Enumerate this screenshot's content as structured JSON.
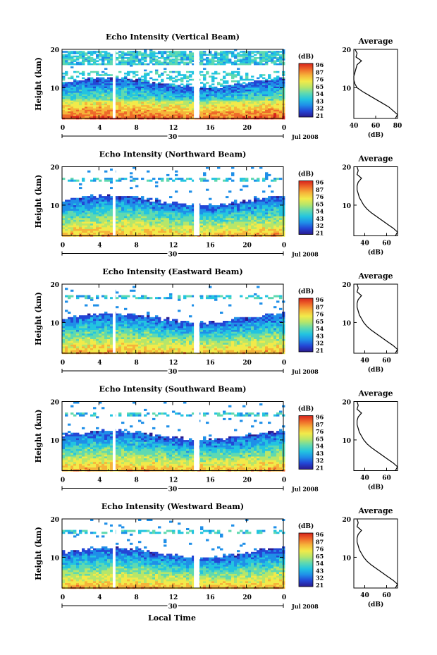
{
  "figure": {
    "date_label": "Jul 2008",
    "day_label": "30",
    "xlabel": "Local Time",
    "ylabel": "Height (km)",
    "avg_title": "Average",
    "avg_xlabel": "(dB)",
    "cbar_label": "(dB)"
  },
  "colors": {
    "colormap": [
      "#2a1a8e",
      "#2346d6",
      "#1f8fe8",
      "#23c4e0",
      "#5fd9b0",
      "#b6e66a",
      "#f2ea4a",
      "#f6b43a",
      "#ef6a2a",
      "#d8241c"
    ],
    "axis": "#000000",
    "gap": "#ffffff"
  },
  "chart_data": [
    {
      "type": "heatmap",
      "title": "Echo Intensity (Vertical Beam)",
      "xlim": [
        0,
        24
      ],
      "ylim": [
        2,
        20
      ],
      "xticks": [
        "0",
        "4",
        "8",
        "12",
        "16",
        "20",
        "0"
      ],
      "yticks": [
        "10",
        "20"
      ],
      "colorbar": {
        "range": [
          21,
          96
        ],
        "ticks": [
          "96",
          "87",
          "76",
          "65",
          "54",
          "43",
          "32",
          "21"
        ]
      },
      "data_gaps_hours": [
        [
          5.5,
          5.8
        ],
        [
          14.3,
          14.9
        ]
      ],
      "avg_profile": {
        "xlim": [
          40,
          80
        ],
        "xticks": [
          "40",
          "60",
          "80"
        ],
        "height": [
          2,
          3,
          4,
          5,
          6,
          7,
          8,
          9,
          10,
          11,
          12,
          13,
          14,
          15,
          16,
          17,
          18,
          19,
          20
        ],
        "value": [
          78,
          80,
          76,
          72,
          66,
          60,
          54,
          48,
          43,
          41,
          40,
          40,
          41,
          42,
          43,
          47,
          42,
          43,
          41
        ]
      }
    },
    {
      "type": "heatmap",
      "title": "Echo Intensity (Northward Beam)",
      "xlim": [
        0,
        24
      ],
      "ylim": [
        2,
        20
      ],
      "xticks": [
        "0",
        "4",
        "8",
        "12",
        "16",
        "20",
        "0"
      ],
      "yticks": [
        "10",
        "20"
      ],
      "colorbar": {
        "range": [
          21,
          96
        ],
        "ticks": [
          "96",
          "87",
          "76",
          "65",
          "54",
          "43",
          "32",
          "21"
        ]
      },
      "data_gaps_hours": [
        [
          5.5,
          5.8
        ],
        [
          14.3,
          14.9
        ]
      ],
      "avg_profile": {
        "xlim": [
          30,
          70
        ],
        "xticks": [
          "40",
          "60"
        ],
        "height": [
          2,
          3,
          4,
          5,
          6,
          7,
          8,
          9,
          10,
          11,
          12,
          13,
          14,
          15,
          16,
          17,
          18,
          19,
          20
        ],
        "value": [
          68,
          70,
          66,
          61,
          56,
          51,
          46,
          42,
          39,
          37,
          35,
          34,
          33,
          33,
          34,
          37,
          33,
          34,
          33
        ]
      }
    },
    {
      "type": "heatmap",
      "title": "Echo Intensity (Eastward Beam)",
      "xlim": [
        0,
        24
      ],
      "ylim": [
        2,
        20
      ],
      "xticks": [
        "0",
        "4",
        "8",
        "12",
        "16",
        "20",
        "0"
      ],
      "yticks": [
        "10",
        "20"
      ],
      "colorbar": {
        "range": [
          21,
          96
        ],
        "ticks": [
          "96",
          "87",
          "76",
          "65",
          "54",
          "43",
          "32",
          "21"
        ]
      },
      "data_gaps_hours": [
        [
          5.5,
          5.8
        ],
        [
          14.3,
          14.9
        ]
      ],
      "avg_profile": {
        "xlim": [
          30,
          70
        ],
        "xticks": [
          "40",
          "60"
        ],
        "height": [
          2,
          3,
          4,
          5,
          6,
          7,
          8,
          9,
          10,
          11,
          12,
          13,
          14,
          15,
          16,
          17,
          18,
          19,
          20
        ],
        "value": [
          68,
          70,
          66,
          61,
          56,
          51,
          46,
          42,
          39,
          37,
          35,
          34,
          33,
          33,
          34,
          37,
          33,
          34,
          33
        ]
      }
    },
    {
      "type": "heatmap",
      "title": "Echo Intensity (Southward Beam)",
      "xlim": [
        0,
        24
      ],
      "ylim": [
        2,
        20
      ],
      "xticks": [
        "0",
        "4",
        "8",
        "12",
        "16",
        "20",
        "0"
      ],
      "yticks": [
        "10",
        "20"
      ],
      "colorbar": {
        "range": [
          21,
          96
        ],
        "ticks": [
          "96",
          "87",
          "76",
          "65",
          "54",
          "43",
          "32",
          "21"
        ]
      },
      "data_gaps_hours": [
        [
          5.5,
          5.8
        ],
        [
          14.3,
          14.9
        ]
      ],
      "avg_profile": {
        "xlim": [
          30,
          70
        ],
        "xticks": [
          "40",
          "60"
        ],
        "height": [
          2,
          3,
          4,
          5,
          6,
          7,
          8,
          9,
          10,
          11,
          12,
          13,
          14,
          15,
          16,
          17,
          18,
          19,
          20
        ],
        "value": [
          68,
          70,
          66,
          61,
          56,
          51,
          46,
          42,
          39,
          37,
          35,
          34,
          33,
          33,
          34,
          37,
          33,
          34,
          33
        ]
      }
    },
    {
      "type": "heatmap",
      "title": "Echo Intensity (Westward Beam)",
      "xlim": [
        0,
        24
      ],
      "ylim": [
        2,
        20
      ],
      "xticks": [
        "0",
        "4",
        "8",
        "12",
        "16",
        "20",
        "0"
      ],
      "yticks": [
        "10",
        "20"
      ],
      "colorbar": {
        "range": [
          21,
          96
        ],
        "ticks": [
          "96",
          "87",
          "76",
          "65",
          "54",
          "43",
          "32",
          "21"
        ]
      },
      "data_gaps_hours": [
        [
          5.5,
          5.8
        ],
        [
          14.3,
          14.9
        ]
      ],
      "avg_profile": {
        "xlim": [
          30,
          70
        ],
        "xticks": [
          "40",
          "60"
        ],
        "height": [
          2,
          3,
          4,
          5,
          6,
          7,
          8,
          9,
          10,
          11,
          12,
          13,
          14,
          15,
          16,
          17,
          18,
          19,
          20
        ],
        "value": [
          68,
          70,
          66,
          61,
          56,
          51,
          46,
          42,
          39,
          37,
          35,
          34,
          33,
          33,
          34,
          37,
          33,
          34,
          33
        ]
      }
    }
  ]
}
